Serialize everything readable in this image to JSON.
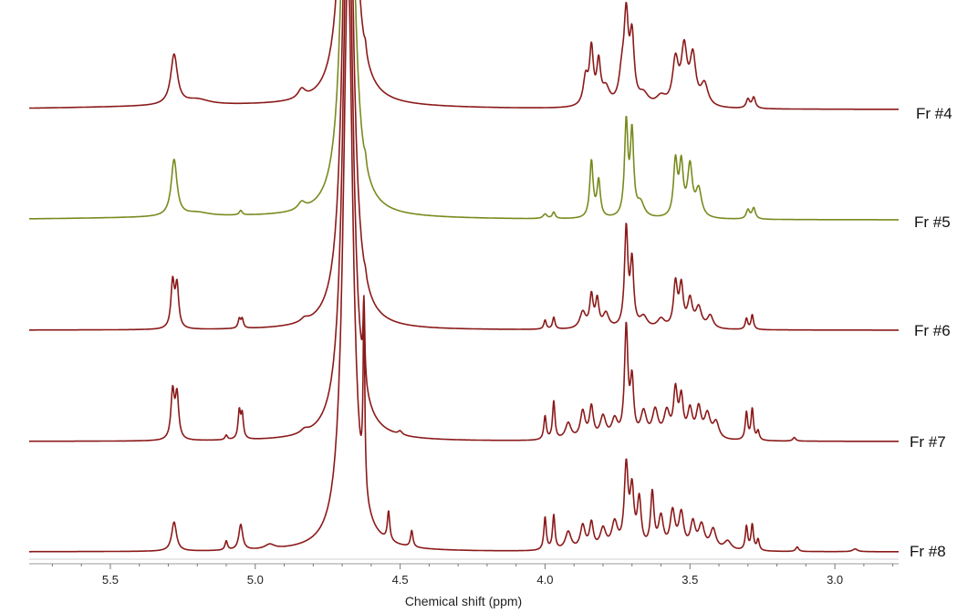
{
  "chart_data": {
    "type": "line",
    "title": "",
    "xlabel": "Chemical shift (ppm)",
    "ylabel": "",
    "xlim": [
      5.78,
      2.78
    ],
    "x_reversed": true,
    "x_ticks": [
      "5.5",
      "5.0",
      "4.5",
      "4.0",
      "3.5",
      "3.0"
    ],
    "grid": false,
    "legend": "none",
    "water_peak": {
      "center": 4.68,
      "width": 0.02
    },
    "series": [
      {
        "name": "Fr #4",
        "color": "#8b1a1a",
        "baseline_offset": 4,
        "peaks": [
          {
            "x": 5.28,
            "h": 55,
            "w": 0.014
          },
          {
            "x": 5.2,
            "h": 6,
            "w": 0.05
          },
          {
            "x": 4.84,
            "h": 10,
            "w": 0.015
          },
          {
            "x": 4.62,
            "h": 10,
            "w": 0.004
          },
          {
            "x": 3.86,
            "h": 30,
            "w": 0.01
          },
          {
            "x": 3.84,
            "h": 60,
            "w": 0.008
          },
          {
            "x": 3.815,
            "h": 45,
            "w": 0.008
          },
          {
            "x": 3.79,
            "h": 18,
            "w": 0.015
          },
          {
            "x": 3.735,
            "h": 30,
            "w": 0.012
          },
          {
            "x": 3.72,
            "h": 90,
            "w": 0.009
          },
          {
            "x": 3.7,
            "h": 70,
            "w": 0.009
          },
          {
            "x": 3.66,
            "h": 12,
            "w": 0.02
          },
          {
            "x": 3.6,
            "h": 10,
            "w": 0.02
          },
          {
            "x": 3.55,
            "h": 48,
            "w": 0.012
          },
          {
            "x": 3.52,
            "h": 60,
            "w": 0.012
          },
          {
            "x": 3.49,
            "h": 52,
            "w": 0.012
          },
          {
            "x": 3.45,
            "h": 24,
            "w": 0.015
          },
          {
            "x": 3.3,
            "h": 10,
            "w": 0.007
          },
          {
            "x": 3.28,
            "h": 12,
            "w": 0.007
          }
        ]
      },
      {
        "name": "Fr #5",
        "color": "#7a8a1e",
        "baseline_offset": 3,
        "peaks": [
          {
            "x": 5.28,
            "h": 62,
            "w": 0.012
          },
          {
            "x": 5.2,
            "h": 4,
            "w": 0.05
          },
          {
            "x": 5.05,
            "h": 5,
            "w": 0.006
          },
          {
            "x": 4.84,
            "h": 8,
            "w": 0.015
          },
          {
            "x": 4.62,
            "h": 9,
            "w": 0.004
          },
          {
            "x": 4.0,
            "h": 5,
            "w": 0.008
          },
          {
            "x": 3.97,
            "h": 7,
            "w": 0.006
          },
          {
            "x": 3.84,
            "h": 62,
            "w": 0.007
          },
          {
            "x": 3.815,
            "h": 40,
            "w": 0.007
          },
          {
            "x": 3.72,
            "h": 102,
            "w": 0.007
          },
          {
            "x": 3.7,
            "h": 90,
            "w": 0.007
          },
          {
            "x": 3.67,
            "h": 15,
            "w": 0.015
          },
          {
            "x": 3.55,
            "h": 60,
            "w": 0.008
          },
          {
            "x": 3.53,
            "h": 55,
            "w": 0.008
          },
          {
            "x": 3.5,
            "h": 55,
            "w": 0.01
          },
          {
            "x": 3.47,
            "h": 30,
            "w": 0.012
          },
          {
            "x": 3.3,
            "h": 10,
            "w": 0.007
          },
          {
            "x": 3.28,
            "h": 12,
            "w": 0.007
          }
        ]
      },
      {
        "name": "Fr #6",
        "color": "#8b1a1a",
        "baseline_offset": 0,
        "peaks": [
          {
            "x": 5.285,
            "h": 50,
            "w": 0.007
          },
          {
            "x": 5.27,
            "h": 46,
            "w": 0.007
          },
          {
            "x": 5.055,
            "h": 10,
            "w": 0.005
          },
          {
            "x": 5.045,
            "h": 10,
            "w": 0.005
          },
          {
            "x": 4.83,
            "h": 4,
            "w": 0.015
          },
          {
            "x": 4.62,
            "h": 6,
            "w": 0.004
          },
          {
            "x": 4.0,
            "h": 10,
            "w": 0.005
          },
          {
            "x": 3.97,
            "h": 13,
            "w": 0.005
          },
          {
            "x": 3.87,
            "h": 18,
            "w": 0.012
          },
          {
            "x": 3.84,
            "h": 35,
            "w": 0.007
          },
          {
            "x": 3.82,
            "h": 30,
            "w": 0.007
          },
          {
            "x": 3.79,
            "h": 16,
            "w": 0.012
          },
          {
            "x": 3.72,
            "h": 108,
            "w": 0.007
          },
          {
            "x": 3.7,
            "h": 70,
            "w": 0.007
          },
          {
            "x": 3.66,
            "h": 12,
            "w": 0.015
          },
          {
            "x": 3.6,
            "h": 10,
            "w": 0.015
          },
          {
            "x": 3.55,
            "h": 48,
            "w": 0.008
          },
          {
            "x": 3.53,
            "h": 44,
            "w": 0.008
          },
          {
            "x": 3.5,
            "h": 30,
            "w": 0.01
          },
          {
            "x": 3.47,
            "h": 22,
            "w": 0.012
          },
          {
            "x": 3.43,
            "h": 14,
            "w": 0.012
          },
          {
            "x": 3.305,
            "h": 12,
            "w": 0.005
          },
          {
            "x": 3.285,
            "h": 16,
            "w": 0.005
          }
        ]
      },
      {
        "name": "Fr #7",
        "color": "#8b1a1a",
        "baseline_offset": 0,
        "peaks": [
          {
            "x": 5.285,
            "h": 52,
            "w": 0.007
          },
          {
            "x": 5.27,
            "h": 48,
            "w": 0.007
          },
          {
            "x": 5.1,
            "h": 5,
            "w": 0.005
          },
          {
            "x": 5.055,
            "h": 30,
            "w": 0.005
          },
          {
            "x": 5.045,
            "h": 26,
            "w": 0.005
          },
          {
            "x": 4.83,
            "h": 4,
            "w": 0.015
          },
          {
            "x": 4.625,
            "h": 85,
            "w": 0.0035
          },
          {
            "x": 4.5,
            "h": 4,
            "w": 0.008
          },
          {
            "x": 4.0,
            "h": 26,
            "w": 0.005
          },
          {
            "x": 3.97,
            "h": 42,
            "w": 0.005
          },
          {
            "x": 3.92,
            "h": 18,
            "w": 0.012
          },
          {
            "x": 3.87,
            "h": 30,
            "w": 0.01
          },
          {
            "x": 3.84,
            "h": 34,
            "w": 0.008
          },
          {
            "x": 3.8,
            "h": 24,
            "w": 0.012
          },
          {
            "x": 3.76,
            "h": 20,
            "w": 0.012
          },
          {
            "x": 3.72,
            "h": 120,
            "w": 0.007
          },
          {
            "x": 3.7,
            "h": 60,
            "w": 0.007
          },
          {
            "x": 3.66,
            "h": 28,
            "w": 0.012
          },
          {
            "x": 3.62,
            "h": 30,
            "w": 0.012
          },
          {
            "x": 3.58,
            "h": 28,
            "w": 0.012
          },
          {
            "x": 3.55,
            "h": 50,
            "w": 0.008
          },
          {
            "x": 3.53,
            "h": 42,
            "w": 0.008
          },
          {
            "x": 3.5,
            "h": 30,
            "w": 0.01
          },
          {
            "x": 3.47,
            "h": 32,
            "w": 0.01
          },
          {
            "x": 3.44,
            "h": 26,
            "w": 0.012
          },
          {
            "x": 3.41,
            "h": 18,
            "w": 0.012
          },
          {
            "x": 3.305,
            "h": 30,
            "w": 0.005
          },
          {
            "x": 3.285,
            "h": 34,
            "w": 0.005
          },
          {
            "x": 3.265,
            "h": 10,
            "w": 0.005
          },
          {
            "x": 3.14,
            "h": 4,
            "w": 0.006
          }
        ]
      },
      {
        "name": "Fr #8",
        "color": "#8b1a1a",
        "baseline_offset": 0,
        "peaks": [
          {
            "x": 5.28,
            "h": 32,
            "w": 0.01
          },
          {
            "x": 5.1,
            "h": 10,
            "w": 0.005
          },
          {
            "x": 5.05,
            "h": 28,
            "w": 0.008
          },
          {
            "x": 4.95,
            "h": 5,
            "w": 0.02
          },
          {
            "x": 4.625,
            "h": 200,
            "w": 0.0035
          },
          {
            "x": 4.54,
            "h": 32,
            "w": 0.005
          },
          {
            "x": 4.46,
            "h": 18,
            "w": 0.005
          },
          {
            "x": 4.0,
            "h": 36,
            "w": 0.005
          },
          {
            "x": 3.97,
            "h": 38,
            "w": 0.005
          },
          {
            "x": 3.92,
            "h": 20,
            "w": 0.012
          },
          {
            "x": 3.87,
            "h": 26,
            "w": 0.01
          },
          {
            "x": 3.84,
            "h": 28,
            "w": 0.008
          },
          {
            "x": 3.8,
            "h": 22,
            "w": 0.012
          },
          {
            "x": 3.76,
            "h": 28,
            "w": 0.012
          },
          {
            "x": 3.72,
            "h": 88,
            "w": 0.008
          },
          {
            "x": 3.7,
            "h": 60,
            "w": 0.008
          },
          {
            "x": 3.675,
            "h": 52,
            "w": 0.008
          },
          {
            "x": 3.63,
            "h": 60,
            "w": 0.007
          },
          {
            "x": 3.6,
            "h": 34,
            "w": 0.01
          },
          {
            "x": 3.56,
            "h": 40,
            "w": 0.01
          },
          {
            "x": 3.53,
            "h": 38,
            "w": 0.01
          },
          {
            "x": 3.49,
            "h": 28,
            "w": 0.01
          },
          {
            "x": 3.46,
            "h": 26,
            "w": 0.012
          },
          {
            "x": 3.42,
            "h": 22,
            "w": 0.012
          },
          {
            "x": 3.37,
            "h": 10,
            "w": 0.015
          },
          {
            "x": 3.305,
            "h": 26,
            "w": 0.005
          },
          {
            "x": 3.285,
            "h": 28,
            "w": 0.005
          },
          {
            "x": 3.265,
            "h": 12,
            "w": 0.005
          },
          {
            "x": 3.13,
            "h": 5,
            "w": 0.006
          },
          {
            "x": 2.93,
            "h": 3,
            "w": 0.01
          }
        ]
      }
    ]
  }
}
